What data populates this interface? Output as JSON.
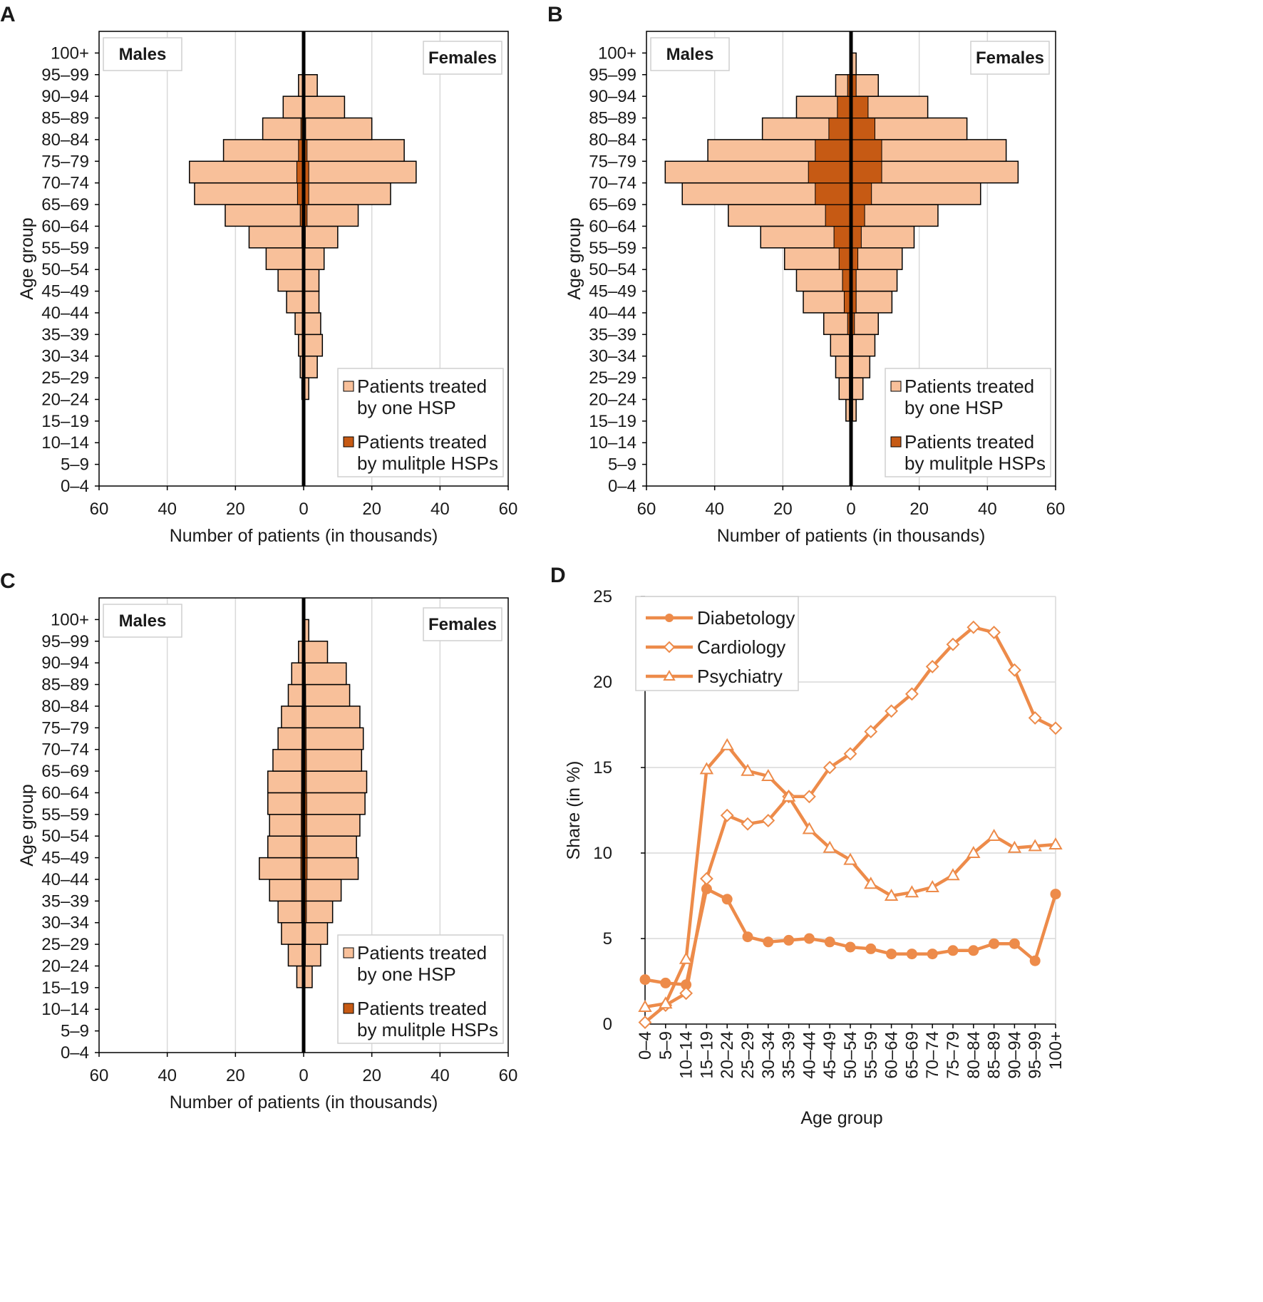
{
  "chart_data": [
    {
      "panel": "A",
      "type": "bar",
      "orientation": "horizontal-pyramid",
      "categories": [
        "0–4",
        "5–9",
        "10–14",
        "15–19",
        "20–24",
        "25–29",
        "30–34",
        "35–39",
        "40–44",
        "45–49",
        "50–54",
        "55–59",
        "60–64",
        "65–69",
        "70–74",
        "75–79",
        "80–84",
        "85–89",
        "90–94",
        "95–99",
        "100+"
      ],
      "males_one_hsp": [
        0,
        0,
        0,
        0,
        0.5,
        1,
        1.5,
        2.5,
        5,
        7.5,
        11,
        16,
        23,
        32,
        33.5,
        23.5,
        12,
        6,
        1.5,
        0,
        0
      ],
      "males_multiple_hsps": [
        0,
        0,
        0,
        0,
        0,
        0,
        0,
        0,
        0.3,
        0.3,
        0.3,
        0.5,
        1,
        1.8,
        2,
        1.5,
        0.8,
        0.3,
        0,
        0,
        0
      ],
      "females_one_hsp": [
        0,
        0,
        0,
        0,
        1.5,
        4,
        5.5,
        5,
        4.5,
        4.5,
        6,
        10,
        16,
        25.5,
        33,
        29.5,
        20,
        12,
        4,
        0,
        0
      ],
      "females_multiple_hsps": [
        0,
        0,
        0,
        0,
        0,
        0,
        0,
        0,
        0.3,
        0.3,
        0.3,
        0.5,
        1,
        1.5,
        1.5,
        1,
        0.6,
        0.3,
        0,
        0,
        0
      ],
      "xlabel": "Number of patients (in thousands)",
      "ylabel": "Age group",
      "xticks": [
        "60",
        "40",
        "20",
        "0",
        "20",
        "40",
        "60"
      ],
      "xlim": [
        -60,
        60
      ],
      "left_label": "Males",
      "right_label": "Females",
      "legend": [
        "Patients treated by one HSP",
        "Patients treated by mulitple HSPs"
      ],
      "legend_position": "bottom-right"
    },
    {
      "panel": "B",
      "type": "bar",
      "orientation": "horizontal-pyramid",
      "categories": [
        "0–4",
        "5–9",
        "10–14",
        "15–19",
        "20–24",
        "25–29",
        "30–34",
        "35–39",
        "40–44",
        "45–49",
        "50–54",
        "55–59",
        "60–64",
        "65–69",
        "70–74",
        "75–79",
        "80–84",
        "85–89",
        "90–94",
        "95–99",
        "100+"
      ],
      "males_one_hsp": [
        0,
        0,
        0,
        1.5,
        3.5,
        4.5,
        6,
        8,
        14,
        16,
        19.5,
        26.5,
        36,
        49.5,
        54.5,
        42,
        26,
        16,
        4.5,
        0,
        0
      ],
      "males_multiple_hsps": [
        0,
        0,
        0,
        0.5,
        0.5,
        0.5,
        0.5,
        1,
        2,
        2.5,
        3.5,
        5,
        7.5,
        10.5,
        12.5,
        10.5,
        6.5,
        4,
        1,
        0,
        0
      ],
      "females_one_hsp": [
        0,
        0,
        0,
        1.5,
        3.5,
        5.5,
        7,
        8,
        12,
        13.5,
        15,
        18.5,
        25.5,
        38,
        49,
        45.5,
        34,
        22.5,
        8,
        1.5,
        0
      ],
      "females_multiple_hsps": [
        0,
        0,
        0,
        0.5,
        0.5,
        0.5,
        0.5,
        1,
        1.5,
        1.5,
        2,
        3,
        4,
        6,
        9,
        9,
        7,
        5,
        1.5,
        0,
        0
      ],
      "xlabel": "Number of patients (in thousands)",
      "ylabel": "Age group",
      "xticks": [
        "60",
        "40",
        "20",
        "0",
        "20",
        "40",
        "60"
      ],
      "xlim": [
        -60,
        60
      ],
      "left_label": "Males",
      "right_label": "Females",
      "legend": [
        "Patients treated by one HSP",
        "Patients treated by mulitple HSPs"
      ],
      "legend_position": "bottom-right"
    },
    {
      "panel": "C",
      "type": "bar",
      "orientation": "horizontal-pyramid",
      "categories": [
        "0–4",
        "5–9",
        "10–14",
        "15–19",
        "20–24",
        "25–29",
        "30–34",
        "35–39",
        "40–44",
        "45–49",
        "50–54",
        "55–59",
        "60–64",
        "65–69",
        "70–74",
        "75–79",
        "80–84",
        "85–89",
        "90–94",
        "95–99",
        "100+"
      ],
      "males_one_hsp": [
        0,
        0,
        0,
        2,
        4.5,
        6.5,
        7.5,
        10,
        13,
        10.5,
        10,
        10.5,
        10.5,
        9,
        7.5,
        6.5,
        4.5,
        3.5,
        1.5,
        0,
        0
      ],
      "males_multiple_hsps": [
        0,
        0,
        0,
        0.3,
        0.5,
        0.5,
        0.6,
        0.6,
        0.8,
        0.8,
        0.7,
        0.7,
        0.6,
        0.6,
        0.5,
        0.5,
        0.4,
        0.3,
        0.2,
        0,
        0
      ],
      "females_one_hsp": [
        0,
        0,
        0,
        2.5,
        5,
        7,
        8.5,
        11,
        16,
        15.5,
        16.5,
        18,
        18.5,
        17,
        17.5,
        16.5,
        13.5,
        12.5,
        7,
        1.5,
        0
      ],
      "females_multiple_hsps": [
        0,
        0,
        0,
        0.3,
        0.5,
        0.6,
        0.8,
        0.8,
        1,
        1,
        0.9,
        0.9,
        0.8,
        0.8,
        0.7,
        0.7,
        0.6,
        0.5,
        0.3,
        0,
        0
      ],
      "xlabel": "Number of patients (in thousands)",
      "ylabel": "Age group",
      "xticks": [
        "60",
        "40",
        "20",
        "0",
        "20",
        "40",
        "60"
      ],
      "xlim": [
        -60,
        60
      ],
      "left_label": "Males",
      "right_label": "Females",
      "legend": [
        "Patients treated by one HSP",
        "Patients treated by mulitple HSPs"
      ],
      "legend_position": "bottom-right"
    },
    {
      "panel": "D",
      "type": "line",
      "categories": [
        "0–4",
        "5–9",
        "10–14",
        "15–19",
        "20–24",
        "25–29",
        "30–34",
        "35–39",
        "40–44",
        "45–49",
        "50–54",
        "55–59",
        "60–64",
        "65–69",
        "70–74",
        "75–79",
        "80–84",
        "85–89",
        "90–94",
        "95–99",
        "100+"
      ],
      "series": [
        {
          "name": "Diabetology",
          "marker": "circle",
          "values": [
            2.6,
            2.4,
            2.3,
            7.9,
            7.3,
            5.1,
            4.8,
            4.9,
            5.0,
            4.8,
            4.5,
            4.4,
            4.1,
            4.1,
            4.1,
            4.3,
            4.3,
            4.7,
            4.7,
            3.7,
            7.6
          ]
        },
        {
          "name": "Cardiology",
          "marker": "diamond",
          "values": [
            0.1,
            1.1,
            1.8,
            8.5,
            12.2,
            11.7,
            11.9,
            13.3,
            13.3,
            15.0,
            15.8,
            17.1,
            18.3,
            19.3,
            20.9,
            22.2,
            23.2,
            22.9,
            20.7,
            17.9,
            17.3
          ]
        },
        {
          "name": "Psychiatry",
          "marker": "triangle",
          "values": [
            1.0,
            1.2,
            3.8,
            14.9,
            16.3,
            14.8,
            14.5,
            13.3,
            11.4,
            10.3,
            9.6,
            8.2,
            7.5,
            7.7,
            8.0,
            8.7,
            10.0,
            11.0,
            10.3,
            10.4,
            10.5
          ]
        }
      ],
      "xlabel": "Age group",
      "ylabel": "Share (in %)",
      "ylim": [
        0,
        25
      ],
      "yticks": [
        "0",
        "5",
        "10",
        "15",
        "20",
        "25"
      ],
      "legend_position": "top-left"
    }
  ],
  "colors": {
    "one_hsp": "#f8c09a",
    "multiple_hsps": "#c65a14",
    "line": "#ed8b4a",
    "grid": "#d9d9d9",
    "axis": "#000000"
  }
}
